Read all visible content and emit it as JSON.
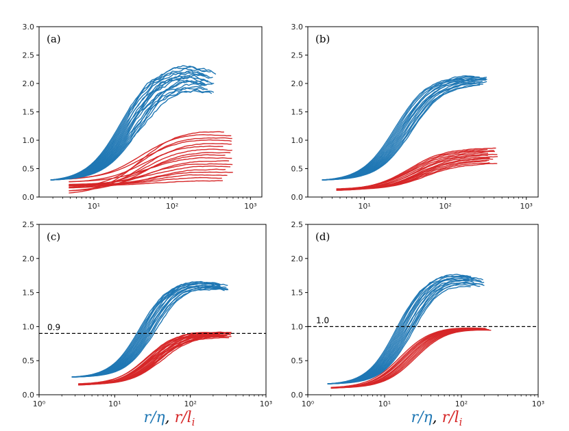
{
  "colors": {
    "blue": "#1f77b4",
    "red": "#d62728",
    "axis": "#000000",
    "ref_line": "#000000"
  },
  "xlabel": {
    "blue_part": "r/η",
    "separator": ", ",
    "red_part": "r/l",
    "red_subscript": "i"
  },
  "chart_data": [
    {
      "type": "line",
      "panel": "(a)",
      "xscale": "log",
      "xlim": [
        2,
        1400
      ],
      "ylim": [
        0,
        3.0
      ],
      "xticks": [
        10,
        100,
        1000
      ],
      "xtick_labels": [
        "10¹",
        "10²",
        "10³"
      ],
      "yticks": [
        0,
        0.5,
        1.0,
        1.5,
        2.0,
        2.5,
        3.0
      ],
      "ytick_labels": [
        "0.0",
        "0.5",
        "1.0",
        "1.5",
        "2.0",
        "2.5",
        "3.0"
      ],
      "reference_line": null,
      "blue_group": {
        "name": "r/η",
        "x_start": 2.8,
        "x_end": 380,
        "y_start": 0.3,
        "plateau_range": [
          1.95,
          2.35
        ],
        "curve_count": 18,
        "peak_x": 150,
        "rise_width": 0.48,
        "tail_drop": 0.22,
        "noise": 0.05
      },
      "red_group": {
        "name": "r/l_i",
        "x_start": 4.8,
        "x_end": 650,
        "y_start": 0.2,
        "y_start_spread": 0.16,
        "plateau_range": [
          0.3,
          1.2
        ],
        "curve_count": 18,
        "peak_x": 150,
        "rise_width": 0.55,
        "tail_drop": 0.1,
        "noise": 0.01
      }
    },
    {
      "type": "line",
      "panel": "(b)",
      "xscale": "log",
      "xlim": [
        2,
        1400
      ],
      "ylim": [
        0,
        3.0
      ],
      "xticks": [
        10,
        100,
        1000
      ],
      "xtick_labels": [
        "10¹",
        "10²",
        "10³"
      ],
      "yticks": [
        0,
        0.5,
        1.0,
        1.5,
        2.0,
        2.5,
        3.0
      ],
      "ytick_labels": [
        "0.0",
        "0.5",
        "1.0",
        "1.5",
        "2.0",
        "2.5",
        "3.0"
      ],
      "reference_line": null,
      "blue_group": {
        "name": "r/η",
        "x_start": 3.0,
        "x_end": 330,
        "y_start": 0.3,
        "plateau_range": [
          2.0,
          2.15
        ],
        "curve_count": 14,
        "peak_x": 400,
        "rise_width": 0.45,
        "tail_drop": 0.0,
        "noise": 0.02
      },
      "red_group": {
        "name": "r/l_i",
        "x_start": 4.5,
        "x_end": 500,
        "y_start": 0.13,
        "y_start_spread": 0.03,
        "plateau_range": [
          0.6,
          0.87
        ],
        "curve_count": 14,
        "peak_x": 500,
        "rise_width": 0.5,
        "tail_drop": 0.0,
        "noise": 0.01
      }
    },
    {
      "type": "line",
      "panel": "(c)",
      "xscale": "log",
      "xlim": [
        1,
        1000
      ],
      "ylim": [
        0,
        2.5
      ],
      "xticks": [
        1,
        10,
        100,
        1000
      ],
      "xtick_labels": [
        "10⁰",
        "10¹",
        "10²",
        "10³"
      ],
      "yticks": [
        0,
        0.5,
        1.0,
        1.5,
        2.0,
        2.5
      ],
      "ytick_labels": [
        "0.0",
        "0.5",
        "1.0",
        "1.5",
        "2.0",
        "2.5"
      ],
      "reference_line": {
        "y": 0.9,
        "label": "0.9"
      },
      "blue_group": {
        "name": "r/η",
        "x_start": 2.7,
        "x_end": 330,
        "y_start": 0.26,
        "plateau_range": [
          1.62,
          1.7
        ],
        "curve_count": 14,
        "peak_x": 80,
        "rise_width": 0.42,
        "tail_drop": 0.1,
        "noise": 0.02
      },
      "red_group": {
        "name": "r/l_i",
        "x_start": 3.3,
        "x_end": 360,
        "y_start": 0.15,
        "y_start_spread": 0.02,
        "plateau_range": [
          0.87,
          0.94
        ],
        "curve_count": 14,
        "peak_x": 100,
        "rise_width": 0.45,
        "tail_drop": 0.06,
        "noise": 0.01
      }
    },
    {
      "type": "line",
      "panel": "(d)",
      "xscale": "log",
      "xlim": [
        1,
        1000
      ],
      "ylim": [
        0,
        2.5
      ],
      "xticks": [
        1,
        10,
        100,
        1000
      ],
      "xtick_labels": [
        "10⁰",
        "10¹",
        "10²",
        "10³"
      ],
      "yticks": [
        0,
        0.5,
        1.0,
        1.5,
        2.0,
        2.5
      ],
      "ytick_labels": [
        "0.0",
        "0.5",
        "1.0",
        "1.5",
        "2.0",
        "2.5"
      ],
      "reference_line": {
        "y": 1.0,
        "label": "1.0"
      },
      "blue_group": {
        "name": "r/η",
        "x_start": 1.8,
        "x_end": 200,
        "y_start": 0.16,
        "plateau_range": [
          1.68,
          1.8
        ],
        "curve_count": 14,
        "peak_x": 60,
        "rise_width": 0.42,
        "tail_drop": 0.12,
        "noise": 0.02
      },
      "red_group": {
        "name": "r/l_i",
        "x_start": 2.0,
        "x_end": 250,
        "y_start": 0.1,
        "y_start_spread": 0.01,
        "plateau_range": [
          0.98,
          1.0
        ],
        "curve_count": 10,
        "peak_x": 70,
        "rise_width": 0.45,
        "tail_drop": 0.06,
        "noise": 0.0
      }
    }
  ]
}
